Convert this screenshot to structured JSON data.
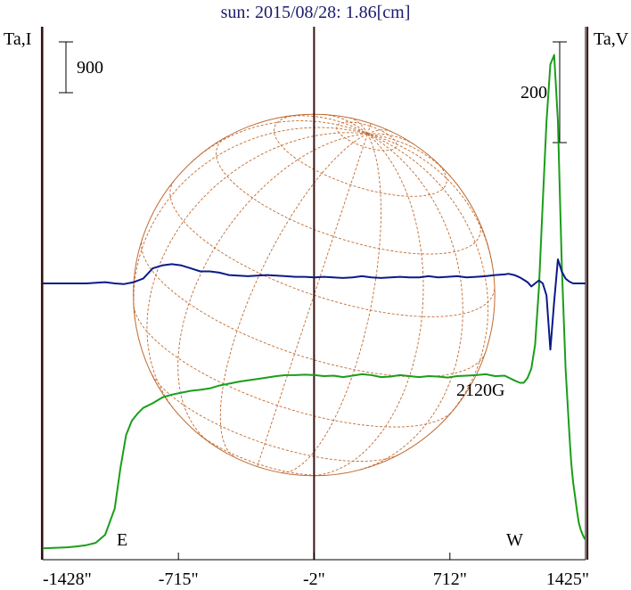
{
  "chart_data": {
    "type": "line",
    "title": "sun: 2015/08/28: 1.86[cm]",
    "left_axis_label": "Ta,I",
    "right_axis_label": "Ta,V",
    "left_scale_bar_label": "900",
    "right_scale_bar_label": "200",
    "x_tick_labels": [
      "-1428\"",
      "-715\"",
      "-2\"",
      "712\"",
      "1425\""
    ],
    "x_tick_values": [
      -1428,
      -715,
      -2,
      712,
      1425
    ],
    "xlim": [
      -1428,
      1425
    ],
    "limb_labels": {
      "east": "E",
      "west": "W"
    },
    "annotation": {
      "text": "2120G",
      "x": 1370
    },
    "vertical_lines_x": [
      -1433,
      -2,
      1435
    ],
    "disk": {
      "center_x": -2,
      "radius_arcsec": 950
    },
    "colors": {
      "intensity": "#1a9e1a",
      "polarization": "#0a1a8a",
      "disk": "#c06a30",
      "grid": "#c06a30",
      "vertical_lines": "#3a1010",
      "axis": "#000000",
      "title": "#1a1a6e"
    },
    "series": [
      {
        "key": "intensity",
        "x": [
          -1428,
          -1300,
          -1250,
          -1200,
          -1150,
          -1100,
          -1050,
          -1020,
          -990,
          -960,
          -930,
          -900,
          -850,
          -800,
          -750,
          -700,
          -650,
          -600,
          -550,
          -500,
          -450,
          -400,
          -350,
          -300,
          -250,
          -200,
          -150,
          -100,
          -50,
          0,
          50,
          100,
          150,
          200,
          250,
          300,
          350,
          400,
          450,
          500,
          550,
          600,
          650,
          700,
          750,
          800,
          850,
          900,
          950,
          1000,
          1050,
          1080,
          1100,
          1120,
          1140,
          1160,
          1180,
          1200,
          1220,
          1240,
          1260,
          1280,
          1300,
          1320,
          1340,
          1350,
          1360,
          1370,
          1380,
          1390,
          1400,
          1410,
          1420,
          1425
        ],
        "y": [
          0.015,
          0.035,
          0.055,
          0.08,
          0.13,
          0.3,
          0.85,
          1.7,
          2.4,
          2.7,
          2.85,
          2.97,
          3.07,
          3.19,
          3.25,
          3.29,
          3.33,
          3.35,
          3.38,
          3.44,
          3.48,
          3.52,
          3.55,
          3.58,
          3.61,
          3.64,
          3.66,
          3.66,
          3.67,
          3.66,
          3.64,
          3.65,
          3.62,
          3.65,
          3.68,
          3.66,
          3.62,
          3.63,
          3.66,
          3.64,
          3.62,
          3.64,
          3.63,
          3.61,
          3.64,
          3.65,
          3.66,
          3.68,
          3.64,
          3.65,
          3.55,
          3.5,
          3.5,
          3.6,
          3.8,
          4.3,
          5.5,
          7.3,
          9.0,
          10.2,
          10.4,
          9.0,
          6.0,
          3.8,
          2.4,
          1.8,
          1.4,
          1.1,
          0.8,
          0.55,
          0.4,
          0.3,
          0.22,
          0.2
        ]
      },
      {
        "key": "polarization",
        "x": [
          -1428,
          -1300,
          -1200,
          -1100,
          -1050,
          -1000,
          -950,
          -900,
          -850,
          -800,
          -750,
          -700,
          -650,
          -600,
          -550,
          -500,
          -450,
          -400,
          -350,
          -300,
          -250,
          -200,
          -150,
          -100,
          -50,
          0,
          50,
          100,
          150,
          200,
          250,
          300,
          350,
          400,
          450,
          500,
          550,
          600,
          650,
          700,
          750,
          800,
          850,
          900,
          950,
          1000,
          1020,
          1050,
          1080,
          1100,
          1120,
          1140,
          1160,
          1180,
          1200,
          1220,
          1240,
          1260,
          1280,
          1300,
          1320,
          1340,
          1360,
          1380,
          1400,
          1425
        ],
        "y": [
          0.0,
          0.0,
          0.0,
          0.02,
          0.0,
          -0.01,
          0.02,
          0.08,
          0.25,
          0.3,
          0.32,
          0.3,
          0.25,
          0.2,
          0.2,
          0.18,
          0.14,
          0.13,
          0.12,
          0.13,
          0.14,
          0.13,
          0.12,
          0.11,
          0.11,
          0.1,
          0.11,
          0.1,
          0.09,
          0.1,
          0.12,
          0.1,
          0.09,
          0.1,
          0.11,
          0.1,
          0.1,
          0.12,
          0.1,
          0.11,
          0.12,
          0.1,
          0.11,
          0.12,
          0.14,
          0.15,
          0.16,
          0.14,
          0.1,
          0.06,
          0.02,
          -0.05,
          0.0,
          0.05,
          0.0,
          -0.2,
          -1.1,
          -0.3,
          0.4,
          0.2,
          0.08,
          0.03,
          0.0,
          0.0,
          0.0,
          0.0
        ]
      }
    ]
  }
}
